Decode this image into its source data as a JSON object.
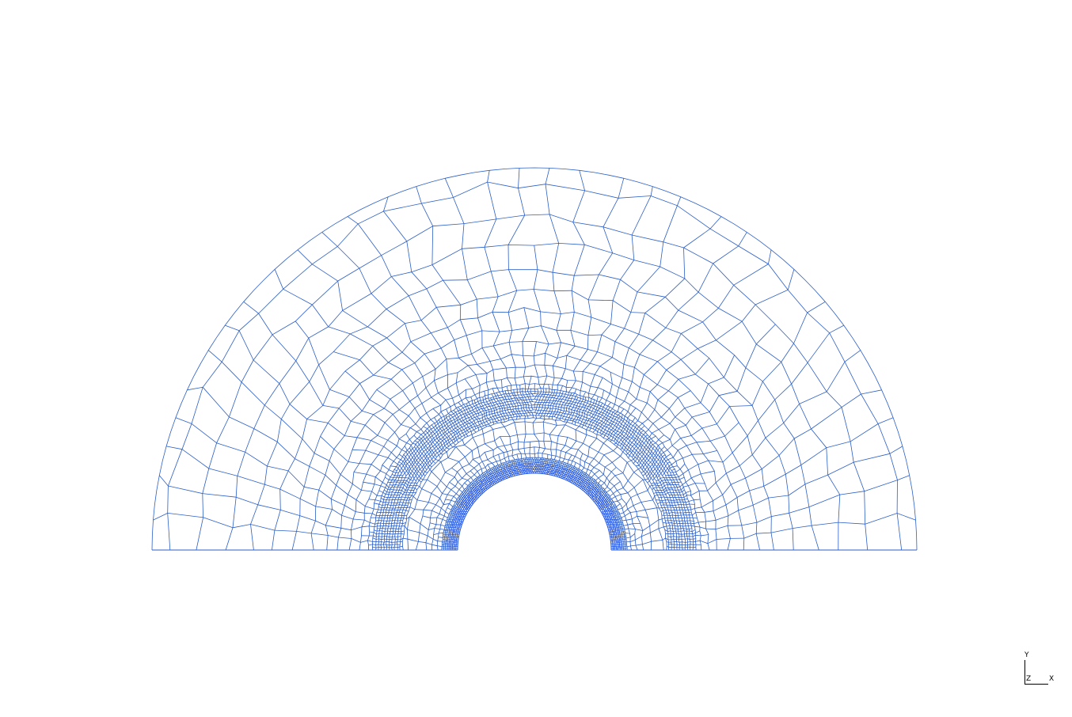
{
  "viewport": {
    "background_color": "#ffffff",
    "mesh_color": "#2b5fc7",
    "mesh_dense_color": "#1a4fe0"
  },
  "axis_triad": {
    "y_label": "Y",
    "z_label": "Z",
    "x_label": "X"
  }
}
